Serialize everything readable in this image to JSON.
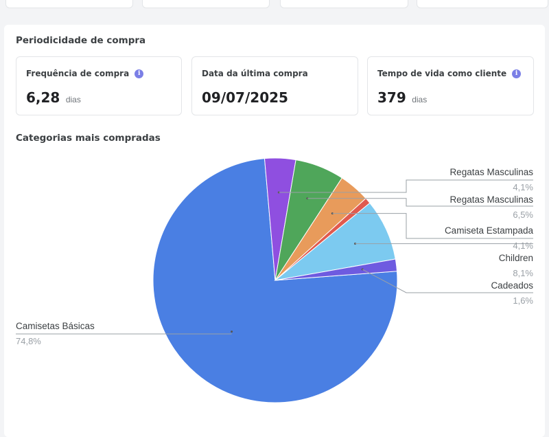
{
  "periodicidade": {
    "title": "Periodicidade de compra",
    "metrics": [
      {
        "label": "Frequência de compra",
        "value": "6,28",
        "unit": "dias",
        "info": true
      },
      {
        "label": "Data da última compra",
        "value": "09/07/2025",
        "unit": "",
        "info": false
      },
      {
        "label": "Tempo de vida como cliente",
        "value": "379",
        "unit": "dias",
        "info": true
      }
    ],
    "info_icon": "info-icon"
  },
  "categorias": {
    "title": "Categorias mais compradas"
  },
  "chart_data": {
    "type": "pie",
    "title": "Categorias mais compradas",
    "legend": "none",
    "slices": [
      {
        "label": "Camisetas Básicas",
        "pct_text": "74,8%",
        "value": 74.8,
        "color": "#4a7fe3"
      },
      {
        "label": "Regatas Masculinas",
        "pct_text": "4,1%",
        "value": 4.1,
        "color": "#8f4fe0"
      },
      {
        "label": "Regatas Masculinas",
        "pct_text": "6,5%",
        "value": 6.5,
        "color": "#4fa65a"
      },
      {
        "label": "Camiseta Estampada",
        "pct_text": "4,1%",
        "value": 4.1,
        "color": "#e89b5b"
      },
      {
        "label": "",
        "pct_text": "",
        "value": 0.8,
        "color": "#e05a4e"
      },
      {
        "label": "Children",
        "pct_text": "8,1%",
        "value": 8.1,
        "color": "#7ccaf0"
      },
      {
        "label": "Cadeados",
        "pct_text": "1,6%",
        "value": 1.6,
        "color": "#6e5be0"
      }
    ]
  }
}
